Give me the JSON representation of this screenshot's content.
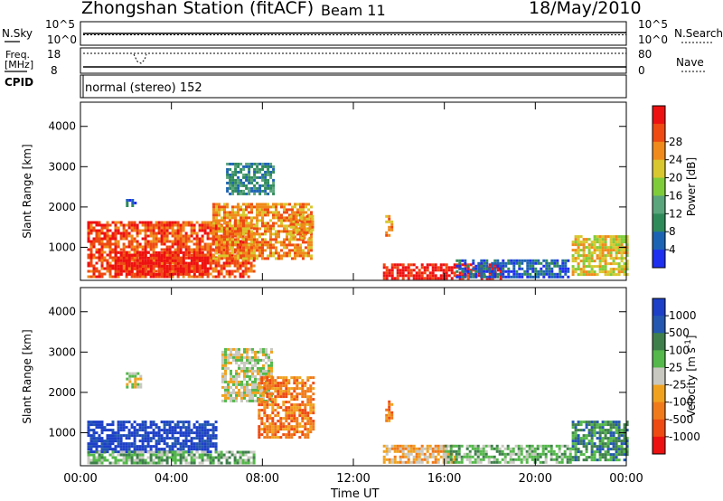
{
  "header": {
    "title": "Zhongshan Station (fitACF)",
    "beam": "Beam 11",
    "date": "18/May/2010"
  },
  "top_panel": {
    "left_label": "N.Sky",
    "right_label": "N.Search",
    "left_ticks": [
      "10^5",
      "10^0"
    ],
    "right_ticks": [
      "10^5",
      "10^0"
    ]
  },
  "freq_panel": {
    "left_label_1": "Freq.",
    "left_label_2": "[MHz]",
    "right_label": "Nave",
    "left_ticks": [
      "18",
      "8"
    ],
    "right_ticks": [
      "80",
      "0"
    ]
  },
  "cpid_panel": {
    "label": "CPID",
    "text": "normal (stereo) 152"
  },
  "colors": {
    "power": [
      "#1e2ff0",
      "#1d63b4",
      "#2f8a5a",
      "#5aa57c",
      "#7fcc3a",
      "#d8c72e",
      "#f08a1a",
      "#ee4a12",
      "#ee1111"
    ],
    "velocity": [
      "#1d3fc8",
      "#2357b0",
      "#3f7f4c",
      "#54b84a",
      "#c8c8c0",
      "#f0a21e",
      "#f07a1a",
      "#ee4a12",
      "#ee1111"
    ]
  },
  "chart_data": [
    {
      "type": "heatmap",
      "title": "",
      "xlabel": "Time UT",
      "ylabel": "Slant Range [km]",
      "x_ticks": [
        "00:00",
        "04:00",
        "08:00",
        "12:00",
        "16:00",
        "20:00",
        "00:00"
      ],
      "y_ticks": [
        1000,
        2000,
        3000,
        4000
      ],
      "xlim": [
        0,
        24
      ],
      "ylim": [
        180,
        4600
      ],
      "colorbar": {
        "label": "Power [dB]",
        "ticks": [
          "4",
          "8",
          "12",
          "16",
          "20",
          "24",
          "28"
        ]
      },
      "regions": [
        {
          "t": [
            0.3,
            7.6
          ],
          "r": [
            280,
            1650
          ],
          "level": 7
        },
        {
          "t": [
            1.5,
            5.5
          ],
          "r": [
            300,
            900
          ],
          "level": 8
        },
        {
          "t": [
            5.8,
            10.2
          ],
          "r": [
            700,
            2100
          ],
          "level": 6
        },
        {
          "t": [
            6.4,
            8.5
          ],
          "r": [
            2300,
            3100
          ],
          "level": 2
        },
        {
          "t": [
            9.2,
            10.2
          ],
          "r": [
            1200,
            1800
          ],
          "level": 6
        },
        {
          "t": [
            13.3,
            18.5
          ],
          "r": [
            250,
            600
          ],
          "level": 8
        },
        {
          "t": [
            16.5,
            21.5
          ],
          "r": [
            250,
            700
          ],
          "level": 1
        },
        {
          "t": [
            21.6,
            24.0
          ],
          "r": [
            300,
            1300
          ],
          "level": 5
        },
        {
          "t": [
            13.4,
            13.7
          ],
          "r": [
            1300,
            1800
          ],
          "level": 6
        },
        {
          "t": [
            2.0,
            2.4
          ],
          "r": [
            2000,
            2200
          ],
          "level": 1
        }
      ]
    },
    {
      "type": "heatmap",
      "title": "",
      "xlabel": "Time UT",
      "ylabel": "Slant Range [km]",
      "x_ticks": [
        "00:00",
        "04:00",
        "08:00",
        "12:00",
        "16:00",
        "20:00",
        "00:00"
      ],
      "y_ticks": [
        1000,
        2000,
        3000,
        4000
      ],
      "xlim": [
        0,
        24
      ],
      "ylim": [
        180,
        4600
      ],
      "colorbar": {
        "label": "Velocity [m s^-1]",
        "ticks": [
          "1000",
          "500",
          "100",
          "25",
          "-25",
          "-100",
          "-500",
          "-1000"
        ]
      },
      "regions": [
        {
          "t": [
            0.3,
            6.0
          ],
          "r": [
            550,
            1300
          ],
          "level": 0
        },
        {
          "t": [
            0.3,
            7.6
          ],
          "r": [
            250,
            550
          ],
          "level": 3
        },
        {
          "t": [
            6.2,
            8.4
          ],
          "r": [
            1800,
            3100
          ],
          "level": 4
        },
        {
          "t": [
            7.8,
            10.2
          ],
          "r": [
            900,
            2400
          ],
          "level": 6
        },
        {
          "t": [
            13.3,
            16.5
          ],
          "r": [
            250,
            700
          ],
          "level": 5
        },
        {
          "t": [
            16.0,
            21.5
          ],
          "r": [
            250,
            700
          ],
          "level": 3
        },
        {
          "t": [
            21.6,
            24.0
          ],
          "r": [
            300,
            1300
          ],
          "level": 2
        },
        {
          "t": [
            13.4,
            13.7
          ],
          "r": [
            1300,
            1800
          ],
          "level": 6
        },
        {
          "t": [
            2.0,
            2.6
          ],
          "r": [
            2100,
            2500
          ],
          "level": 4
        }
      ]
    }
  ]
}
